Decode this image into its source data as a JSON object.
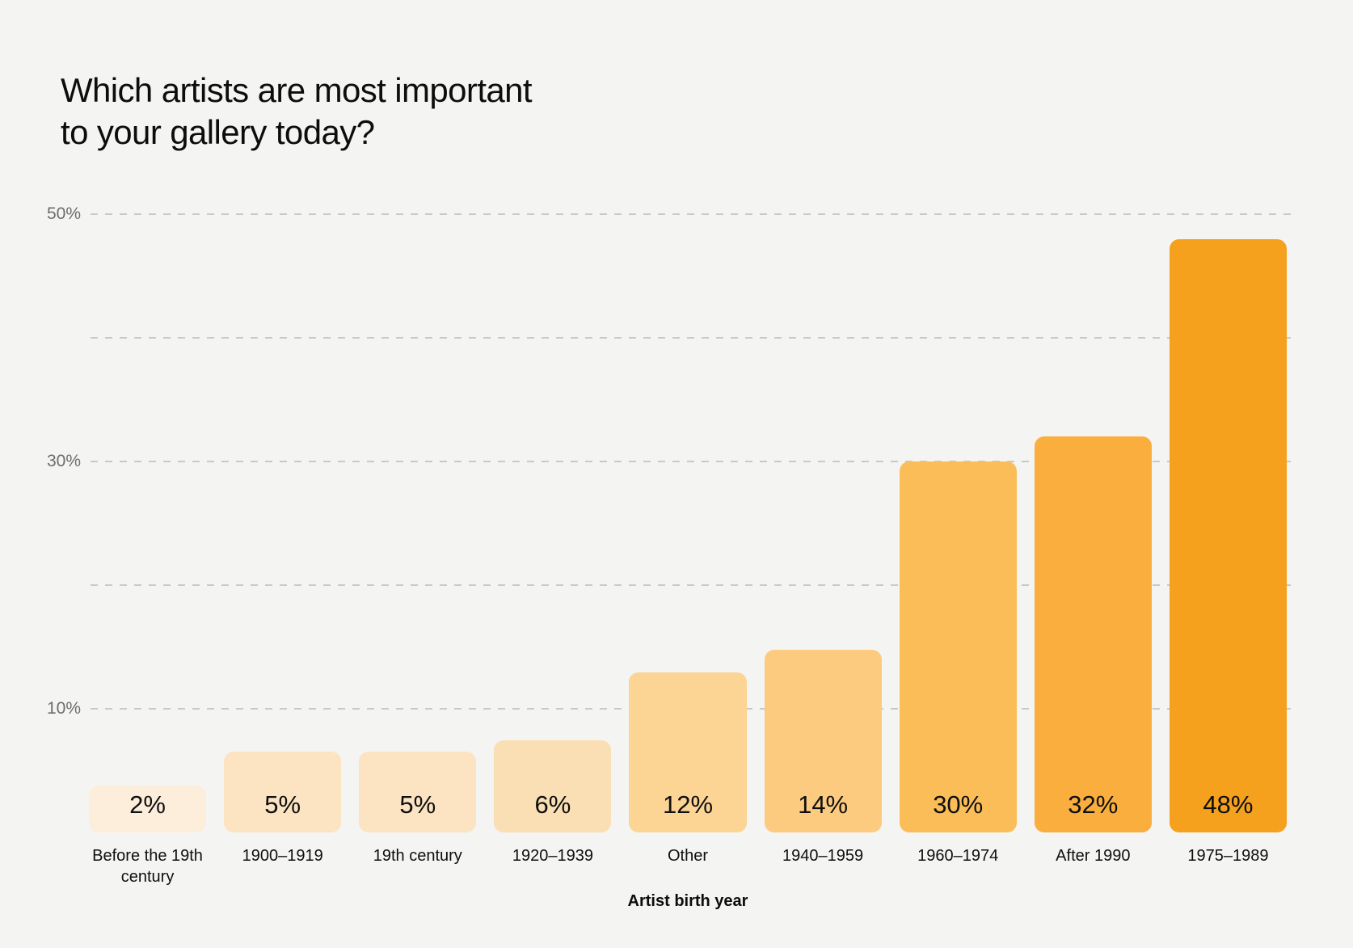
{
  "title": {
    "line1": "Which artists are most important",
    "line2": "to your gallery today?"
  },
  "chart_data": {
    "type": "bar",
    "title": "Which artists are most important to your gallery today?",
    "categories": [
      "Before the 19th century",
      "1900–1919",
      "19th century",
      "1920–1939",
      "Other",
      "1940–1959",
      "1960–1974",
      "After 1990",
      "1975–1989"
    ],
    "values": [
      2,
      5,
      5,
      6,
      12,
      14,
      30,
      32,
      48
    ],
    "bar_labels": [
      "2%",
      "5%",
      "5%",
      "6%",
      "12%",
      "14%",
      "30%",
      "32%",
      "48%"
    ],
    "bar_colors": [
      "#fdeedb",
      "#fce4c2",
      "#fce4c2",
      "#fbdfb4",
      "#fcd494",
      "#fccb80",
      "#fbbd58",
      "#faae3e",
      "#f5a11d"
    ],
    "xlabel": "Artist birth year",
    "ylabel": "",
    "ylim": [
      0,
      50
    ],
    "yticks": [
      {
        "value": 10,
        "label": "10%"
      },
      {
        "value": 20,
        "label": ""
      },
      {
        "value": 30,
        "label": "30%"
      },
      {
        "value": 40,
        "label": ""
      },
      {
        "value": 50,
        "label": "50%"
      }
    ],
    "grid": "horizontal-dashed",
    "legend": "none"
  },
  "colors": {
    "background": "#f4f4f2",
    "gridline": "#c9c9c6",
    "tick_label": "#6d6d6b",
    "text": "#0d0d0d"
  }
}
